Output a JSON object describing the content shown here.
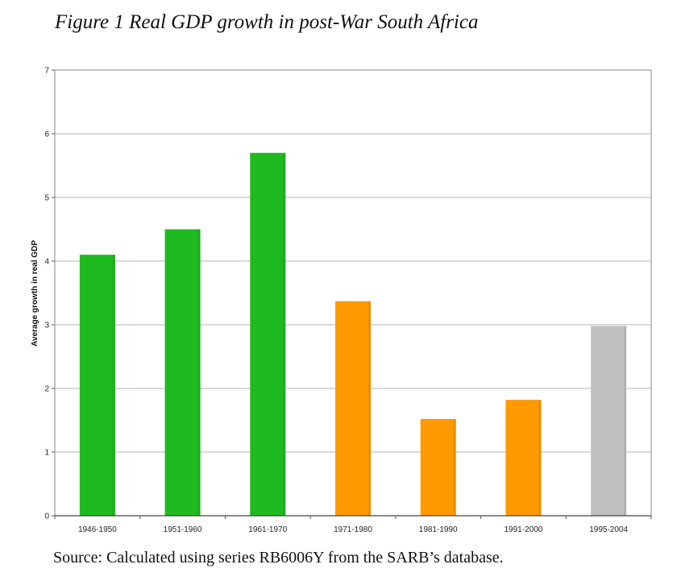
{
  "chart_data": {
    "type": "bar",
    "title": "Figure 1 Real GDP growth in post-War South Africa",
    "xlabel": "",
    "ylabel": "Average growth in real GDP",
    "ylim": [
      0,
      7
    ],
    "yticks": [
      "0",
      "1",
      "2",
      "3",
      "4",
      "5",
      "6",
      "7"
    ],
    "grid": true,
    "categories": [
      "1946-1950",
      "1951-1960",
      "1961-1970",
      "1971-1980",
      "1981-1990",
      "1991-2000",
      "1995-2004"
    ],
    "values": [
      4.1,
      4.5,
      5.7,
      3.37,
      1.52,
      1.82,
      2.98
    ],
    "colors": [
      "#1fba1f",
      "#1fba1f",
      "#1fba1f",
      "#ff9900",
      "#ff9900",
      "#ff9900",
      "#c0c0c0"
    ]
  },
  "source": "Source: Calculated using series RB6006Y from the SARB’s database."
}
